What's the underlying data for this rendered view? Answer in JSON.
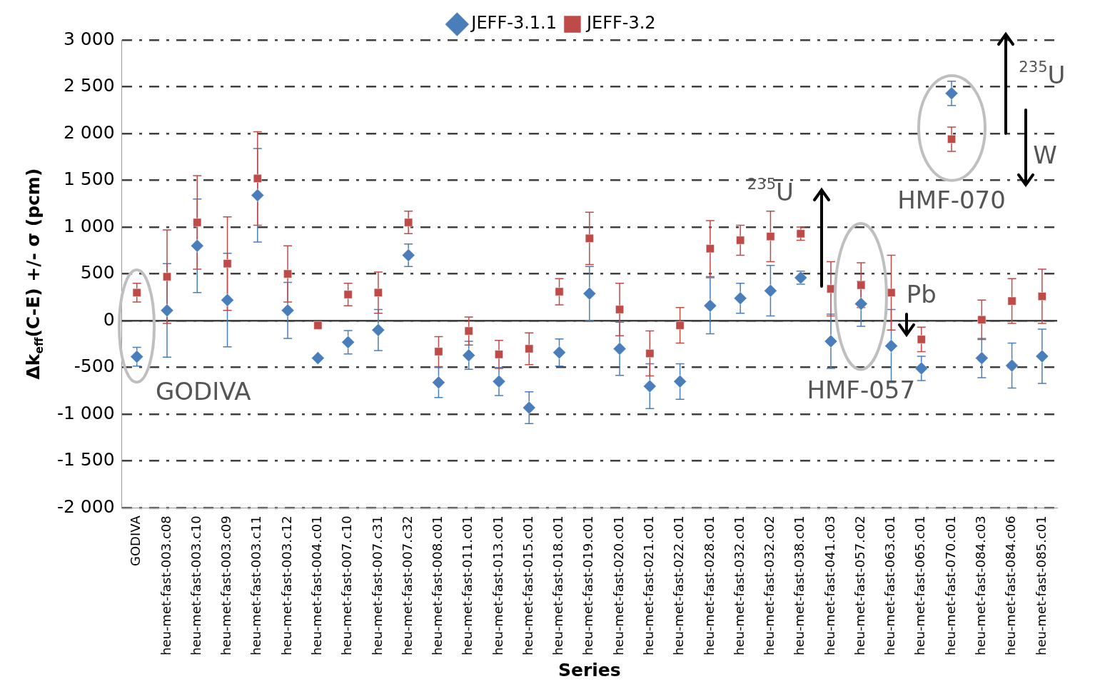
{
  "chart_data": {
    "type": "scatter",
    "xlabel": "Series",
    "ylabel": "Δk$_{eff}$(C-E) +/- σ (pcm)",
    "categories": [
      "GODIVA",
      "heu-met-fast-003.c08",
      "heu-met-fast-003.c10",
      "heu-met-fast-003.c09",
      "heu-met-fast-003.c11",
      "heu-met-fast-003.c12",
      "heu-met-fast-004.c01",
      "heu-met-fast-007.c10",
      "heu-met-fast-007.c31",
      "heu-met-fast-007.c32",
      "heu-met-fast-008.c01",
      "heu-met-fast-011.c01",
      "heu-met-fast-013.c01",
      "heu-met-fast-015.c01",
      "heu-met-fast-018.c01",
      "heu-met-fast-019.c01",
      "heu-met-fast-020.c01",
      "heu-met-fast-021.c01",
      "heu-met-fast-022.c01",
      "heu-met-fast-028.c01",
      "heu-met-fast-032.c01",
      "heu-met-fast-032.c02",
      "heu-met-fast-038.c01",
      "heu-met-fast-041.c03",
      "heu-met-fast-057.c02",
      "heu-met-fast-063.c01",
      "heu-met-fast-065.c01",
      "heu-met-fast-070.c01",
      "heu-met-fast-084.c03",
      "heu-met-fast-084.c06",
      "heu-met-fast-085.c01"
    ],
    "series": [
      {
        "name": "JEFF-3.1.1",
        "color": "#4a7ebb",
        "marker": "diamond",
        "values": [
          -385,
          110,
          800,
          220,
          1340,
          110,
          -400,
          -230,
          -100,
          700,
          -660,
          -370,
          -650,
          -930,
          -340,
          290,
          -300,
          -700,
          -650,
          160,
          240,
          320,
          460,
          -220,
          180,
          -270,
          -510,
          2430,
          -400,
          -480,
          -380
        ],
        "errors": [
          100,
          500,
          500,
          500,
          500,
          300,
          null,
          125,
          220,
          120,
          160,
          150,
          150,
          170,
          145,
          290,
          285,
          240,
          190,
          300,
          160,
          270,
          70,
          290,
          240,
          390,
          130,
          130,
          210,
          240,
          290
        ]
      },
      {
        "name": "JEFF-3.2",
        "color": "#be4b48",
        "marker": "square",
        "values": [
          300,
          470,
          1050,
          610,
          1520,
          500,
          -50,
          280,
          300,
          1050,
          -330,
          -110,
          -360,
          -300,
          310,
          880,
          120,
          -350,
          -50,
          770,
          860,
          900,
          930,
          340,
          380,
          300,
          -200,
          1940,
          10,
          210,
          260
        ],
        "errors": [
          100,
          500,
          500,
          500,
          500,
          300,
          null,
          120,
          220,
          120,
          160,
          150,
          150,
          170,
          140,
          280,
          280,
          240,
          190,
          300,
          160,
          270,
          70,
          290,
          240,
          400,
          130,
          130,
          210,
          240,
          290
        ]
      }
    ],
    "ylim": [
      -2000,
      3000
    ],
    "yticks": [
      {
        "value": -2000,
        "label": "-2 000"
      },
      {
        "value": -1500,
        "label": "-1 500"
      },
      {
        "value": -1000,
        "label": "-1 000"
      },
      {
        "value": -500,
        "label": "-500"
      },
      {
        "value": 0,
        "label": "0"
      },
      {
        "value": 500,
        "label": "500"
      },
      {
        "value": 1000,
        "label": "1 000"
      },
      {
        "value": 1500,
        "label": "1 500"
      },
      {
        "value": 2000,
        "label": "2 000"
      },
      {
        "value": 2500,
        "label": "2 500"
      },
      {
        "value": 3000,
        "label": "3 000"
      }
    ],
    "grid": "y",
    "legend": "top",
    "annotations": [
      "GODIVA",
      "HMF-057",
      "HMF-070",
      "$^{235}$U",
      "Pb",
      "$^{235}$U",
      "W"
    ]
  }
}
